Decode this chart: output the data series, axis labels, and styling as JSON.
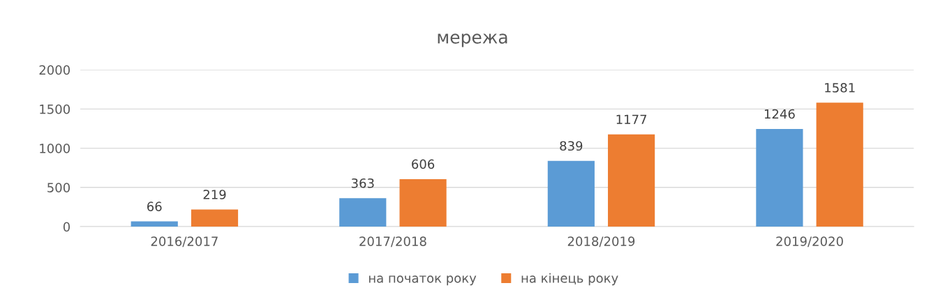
{
  "chart_data": {
    "type": "bar",
    "title": "мережа",
    "categories": [
      "2016/2017",
      "2017/2018",
      "2018/2019",
      "2019/2020"
    ],
    "series": [
      {
        "name": "на початок року",
        "color": "#5b9bd5",
        "values": [
          66,
          363,
          839,
          1246
        ]
      },
      {
        "name": "на кінець року",
        "color": "#ed7d31",
        "values": [
          219,
          606,
          1177,
          1581
        ]
      }
    ],
    "ylim": [
      0,
      2000
    ],
    "yticks": [
      0,
      500,
      1000,
      1500,
      2000
    ],
    "grid": "y",
    "legend": "bottom",
    "data_labels": true
  }
}
